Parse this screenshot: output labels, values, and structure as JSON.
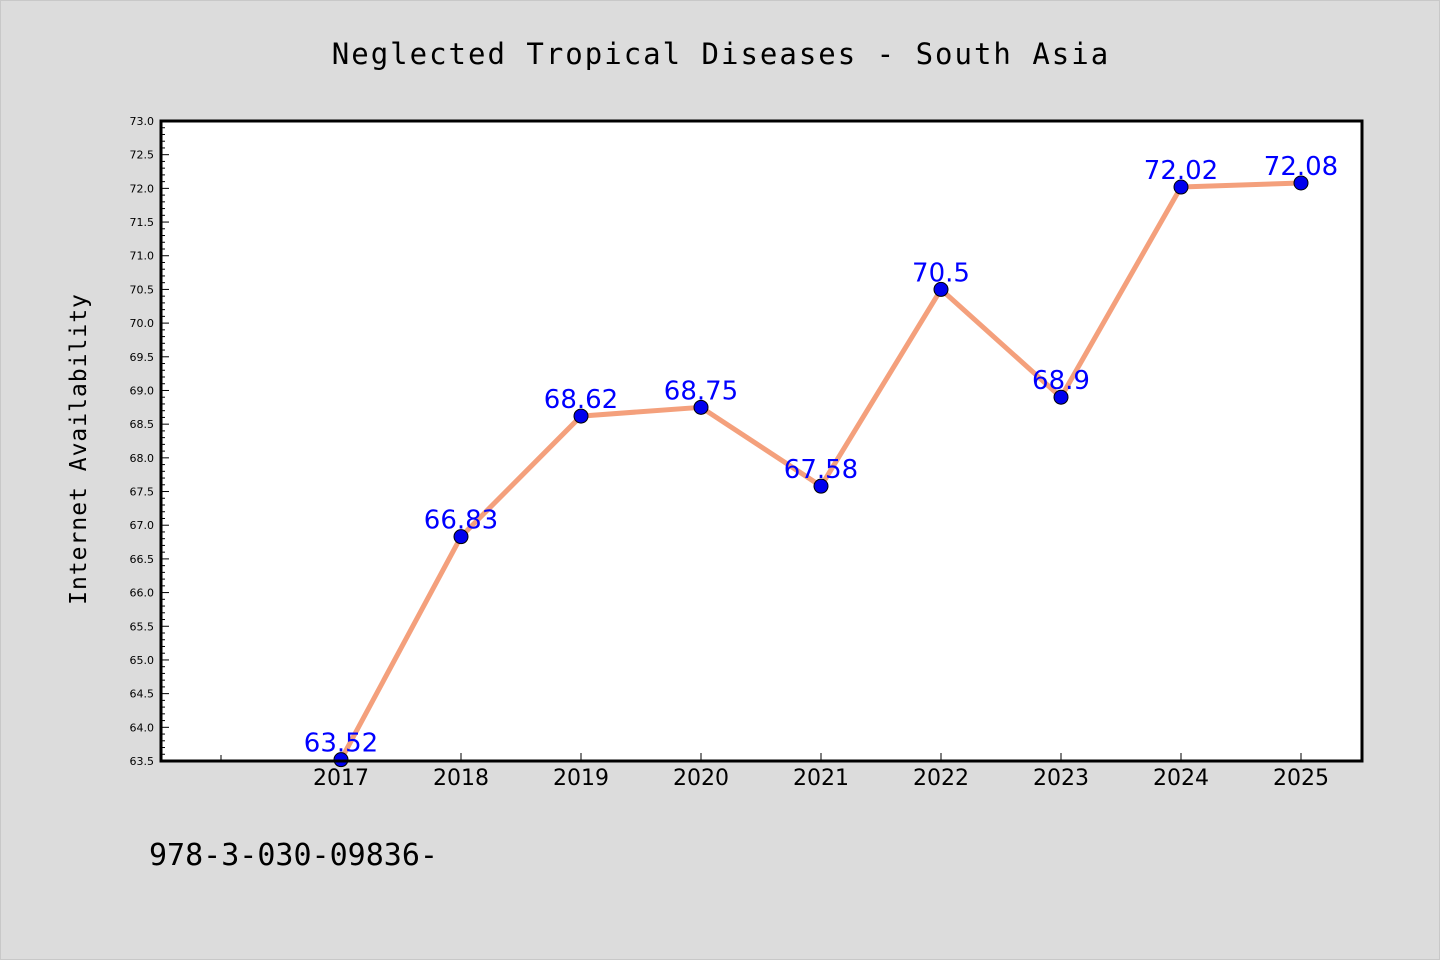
{
  "chart_data": {
    "type": "line",
    "title": "Neglected Tropical Diseases - South Asia",
    "xlabel": "",
    "ylabel": "Internet Availability",
    "categories": [
      "2017",
      "2018",
      "2019",
      "2020",
      "2021",
      "2022",
      "2023",
      "2024",
      "2025"
    ],
    "series": [
      {
        "values": [
          63.52,
          66.83,
          68.62,
          68.75,
          67.58,
          70.5,
          68.9,
          72.02,
          72.08
        ],
        "labels": [
          "63.52",
          "66.83",
          "68.62",
          "68.75",
          "67.58",
          "70.5",
          "68.9",
          "72.02",
          "72.08"
        ],
        "line_color": "#f4a07c",
        "marker_color": "#0000ee"
      }
    ],
    "ylim": [
      63.5,
      73.0
    ],
    "yticks": [
      "63.5",
      "64.0",
      "64.5",
      "65.0",
      "65.5",
      "66.0",
      "66.5",
      "67.0",
      "67.5",
      "68.0",
      "68.5",
      "69.0",
      "69.5",
      "70.0",
      "70.5",
      "71.0",
      "71.5",
      "72.0",
      "72.5",
      "73.0"
    ],
    "grid": false,
    "legend": "none"
  },
  "footer": {
    "text": "978-3-030-09836-"
  },
  "colors": {
    "background": "#dcdcdc",
    "plot_area": "#ffffff",
    "data_label": "#0000ff"
  }
}
